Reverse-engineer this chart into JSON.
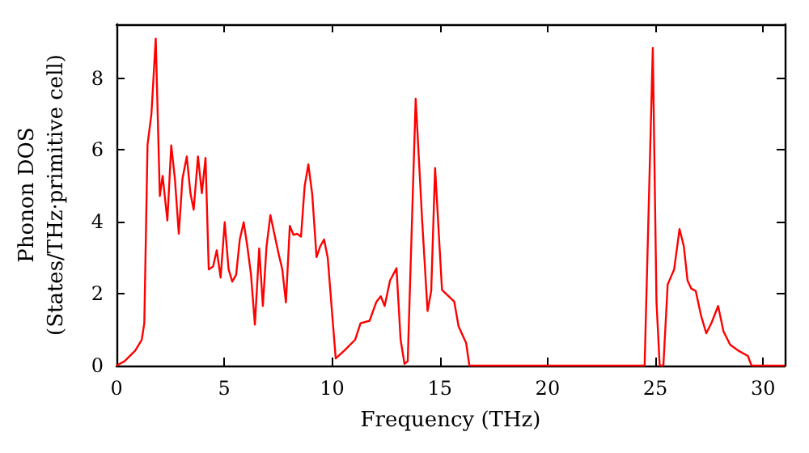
{
  "chart_data": {
    "type": "line",
    "xlabel": "Frequency (THz)",
    "ylabel": "Phonon DOS\n(States/THz·primitive cell)",
    "x": [
      0,
      0.37,
      0.87,
      1.17,
      1.29,
      1.44,
      1.62,
      1.82,
      2.01,
      2.14,
      2.36,
      2.54,
      2.71,
      2.89,
      3.06,
      3.26,
      3.43,
      3.58,
      3.78,
      3.96,
      4.13,
      4.28,
      4.48,
      4.65,
      4.83,
      5.02,
      5.2,
      5.37,
      5.55,
      5.72,
      5.9,
      6.07,
      6.24,
      6.42,
      6.62,
      6.79,
      6.96,
      7.14,
      7.34,
      7.51,
      7.69,
      7.86,
      8.04,
      8.21,
      8.38,
      8.56,
      8.73,
      8.9,
      9.08,
      9.28,
      9.45,
      9.63,
      9.8,
      9.98,
      10.17,
      10.57,
      11.07,
      11.32,
      11.74,
      12.06,
      12.26,
      12.44,
      12.69,
      12.99,
      13.18,
      13.36,
      13.51,
      13.88,
      14.18,
      14.43,
      14.6,
      14.78,
      15.1,
      15.67,
      15.87,
      16.22,
      16.37,
      24.5,
      24.88,
      25.05,
      25.2,
      25.37,
      25.57,
      25.87,
      26.12,
      26.32,
      26.49,
      26.67,
      26.87,
      27.11,
      27.36,
      27.61,
      27.91,
      28.16,
      28.47,
      28.84,
      29.29,
      29.46,
      31
    ],
    "series": [
      {
        "color": "#ff0000",
        "values": [
          0,
          0.12,
          0.42,
          0.72,
          1.18,
          6.15,
          7.0,
          9.1,
          4.72,
          5.28,
          4.04,
          6.13,
          5.2,
          3.67,
          5.2,
          5.82,
          4.8,
          4.34,
          5.82,
          4.8,
          5.78,
          2.68,
          2.76,
          3.21,
          2.45,
          3.99,
          2.68,
          2.34,
          2.53,
          3.51,
          3.99,
          3.32,
          2.53,
          1.14,
          3.26,
          1.66,
          3.32,
          4.19,
          3.62,
          3.14,
          2.68,
          1.76,
          3.89,
          3.64,
          3.67,
          3.59,
          5.0,
          5.6,
          4.77,
          3.02,
          3.32,
          3.51,
          3.0,
          1.63,
          0.2,
          0.42,
          0.72,
          1.18,
          1.25,
          1.78,
          1.93,
          1.66,
          2.37,
          2.71,
          0.72,
          0.05,
          0.12,
          7.43,
          4.04,
          1.52,
          2.08,
          5.5,
          2.11,
          1.78,
          1.09,
          0.63,
          0,
          0,
          8.84,
          1.78,
          0,
          0,
          2.26,
          2.68,
          3.8,
          3.32,
          2.37,
          2.14,
          2.08,
          1.41,
          0.9,
          1.2,
          1.66,
          0.95,
          0.58,
          0.42,
          0.27,
          0,
          0
        ]
      }
    ],
    "xlim": [
      0,
      31
    ],
    "ylim": [
      0,
      9.5
    ],
    "xticks": [
      0,
      5,
      10,
      15,
      20,
      25,
      30
    ],
    "yticks": [
      0,
      2,
      4,
      6,
      8
    ],
    "grid": false,
    "marker": "none",
    "line_style": "solid"
  }
}
